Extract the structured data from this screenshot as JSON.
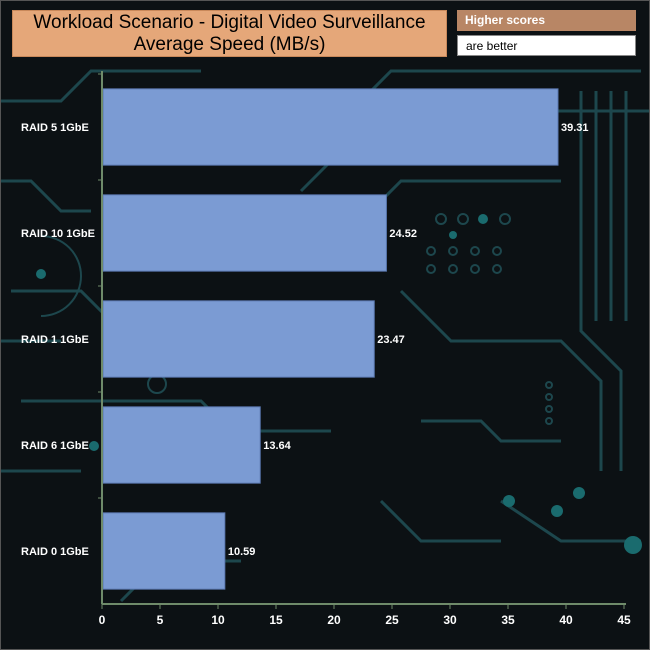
{
  "title_line1": "Workload Scenario - Digital Video Surveillance",
  "title_line2": "Average Speed (MB/s)",
  "note_line1": "Higher scores",
  "note_line2": "are better",
  "colors": {
    "bar": "#7b9bd3",
    "bar_edge": "#5a78b0",
    "axis": "#6f8b6a",
    "title_bg": "#e5a779",
    "note_bg": "#b88665",
    "circuit": "#1f4c52"
  },
  "chart_data": {
    "type": "bar",
    "orientation": "horizontal",
    "categories": [
      "RAID 5 1GbE",
      "RAID 10 1GbE",
      "RAID 1 1GbE",
      "RAID 6 1GbE",
      "RAID 0 1GbE"
    ],
    "values": [
      39.31,
      24.52,
      23.47,
      13.64,
      10.59
    ],
    "value_labels": [
      "39.31",
      "24.52",
      "23.47",
      "13.64",
      "10.59"
    ],
    "xlim": [
      0,
      45
    ],
    "xticks": [
      "0",
      "5",
      "10",
      "15",
      "20",
      "25",
      "30",
      "35",
      "40",
      "45"
    ],
    "title": "Workload Scenario - Digital Video Surveillance Average Speed (MB/s)",
    "xlabel": "",
    "ylabel": "",
    "grid": false,
    "legend": "none"
  }
}
